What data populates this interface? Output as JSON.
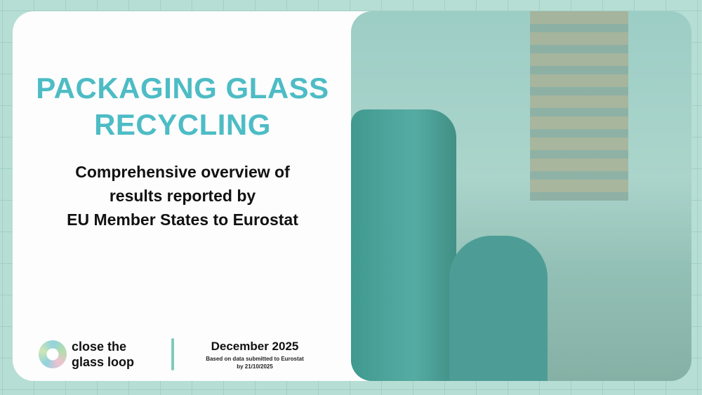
{
  "title": {
    "line1": "PACKAGING GLASS",
    "line2": "RECYCLING"
  },
  "subtitle": {
    "line1": "Comprehensive overview of",
    "line2": "results reported by",
    "line3": "EU Member States to Eurostat"
  },
  "logo": {
    "line1": "close the",
    "line2": "glass loop"
  },
  "date": "December 2025",
  "note": "Based on data submitted to Eurostat by 21/10/2025",
  "colors": {
    "accent": "#4dbcc5",
    "background": "#b6ded5",
    "divider": "#7fcbbb"
  },
  "photo": "woman-and-child-recycling-glass-bottles"
}
